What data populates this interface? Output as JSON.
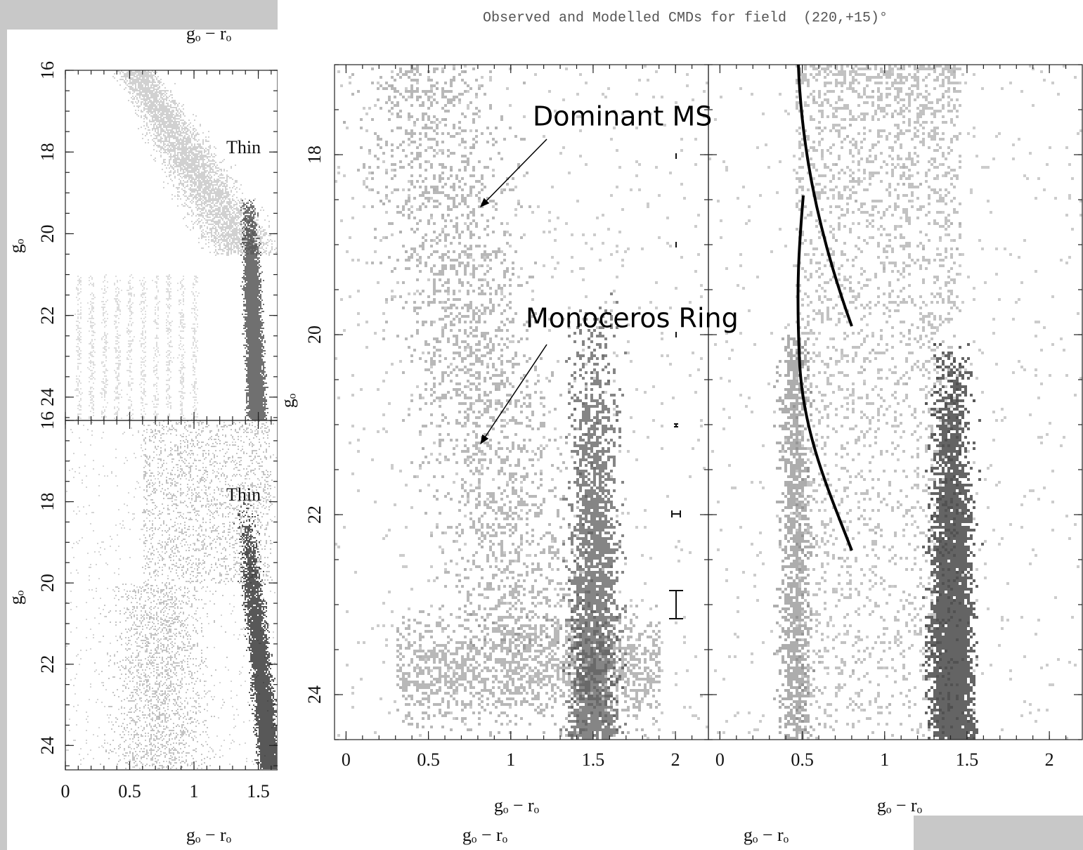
{
  "title": "Observed and Modelled CMDs for field  (220,+15)°",
  "annotations": [
    "Dominant MS",
    "Monoceros Ring"
  ],
  "left_figure": {
    "top_x_label": "gₒ − rₒ",
    "bottom_x_label": "gₒ − rₒ",
    "xlim": [
      0,
      1.65
    ],
    "xticks": [
      0,
      0.5,
      1,
      1.5
    ],
    "panels": [
      {
        "y_label": "gₒ",
        "label": "Thin",
        "ylim": [
          16,
          24.57
        ],
        "yticks": [
          16,
          18,
          20,
          22,
          24
        ]
      },
      {
        "y_label": "gₒ",
        "label": "Thin",
        "ylim": [
          16,
          24.6
        ],
        "yticks": [
          16,
          18,
          20,
          22,
          24
        ]
      }
    ]
  },
  "main_figure": {
    "y_label": "gₒ",
    "ylim": [
      17,
      24.5
    ],
    "yticks": [
      18,
      20,
      22,
      24
    ],
    "panels": [
      {
        "x_label": "gₒ − rₒ",
        "caption_label": "gₒ − rₒ",
        "xlim": [
          -0.07,
          2.2
        ],
        "xticks": [
          0,
          0.5,
          1,
          1.5,
          2
        ]
      },
      {
        "x_label": "gₒ − rₒ",
        "caption_label": "gₒ − rₒ",
        "xlim": [
          -0.07,
          2.2
        ],
        "xticks": [
          0,
          0.5,
          1,
          1.5,
          2
        ]
      }
    ]
  }
}
